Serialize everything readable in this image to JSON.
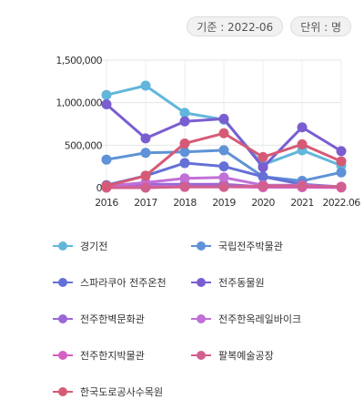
{
  "header": {
    "base_date": "기준 : 2022-06",
    "unit": "단위 : 명"
  },
  "chart_data": {
    "type": "line",
    "categories": [
      "2016",
      "2017",
      "2018",
      "2019",
      "2020",
      "2021",
      "2022.06"
    ],
    "ylim": [
      0,
      1500000
    ],
    "yticks": [
      0,
      500000,
      1000000,
      1500000
    ],
    "ytick_labels": [
      "0",
      "500,000",
      "1,000,000",
      "1,500,000"
    ],
    "grid": true,
    "legend_position": "bottom",
    "series": [
      {
        "name": "경기전",
        "color": "#62b6dc",
        "values": [
          1090000,
          1200000,
          880000,
          800000,
          270000,
          440000,
          260000
        ]
      },
      {
        "name": "국립전주박물관",
        "color": "#5f92d6",
        "values": [
          330000,
          410000,
          420000,
          440000,
          130000,
          80000,
          180000
        ]
      },
      {
        "name": "스파라쿠아 전주온천",
        "color": "#6570d6",
        "values": [
          30000,
          140000,
          290000,
          250000,
          130000,
          40000,
          10000
        ]
      },
      {
        "name": "전주동물원",
        "color": "#7a5ed0",
        "values": [
          980000,
          580000,
          780000,
          810000,
          240000,
          710000,
          430000
        ]
      },
      {
        "name": "전주한벽문화관",
        "color": "#9a68d6",
        "values": [
          10000,
          40000,
          40000,
          40000,
          10000,
          10000,
          10000
        ]
      },
      {
        "name": "전주한옥레일바이크",
        "color": "#c070d6",
        "values": [
          20000,
          60000,
          110000,
          120000,
          30000,
          30000,
          10000
        ]
      },
      {
        "name": "전주한지박물관",
        "color": "#d65fc3",
        "values": [
          5000,
          10000,
          10000,
          10000,
          5000,
          5000,
          2000
        ]
      },
      {
        "name": "팔복예술공장",
        "color": "#d2608e",
        "values": [
          0,
          0,
          10000,
          10000,
          20000,
          20000,
          10000
        ]
      },
      {
        "name": "한국도로공사수목원",
        "color": "#d65a76",
        "values": [
          20000,
          140000,
          520000,
          640000,
          360000,
          510000,
          310000
        ]
      }
    ]
  }
}
